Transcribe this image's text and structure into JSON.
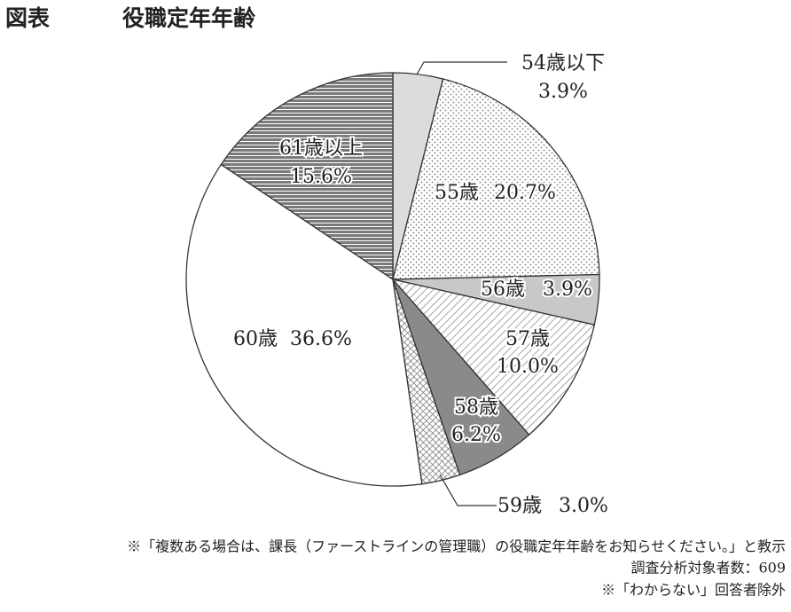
{
  "chart_data": {
    "type": "pie",
    "label": "図表",
    "title": "役職定年年齢",
    "categories": [
      "54歳以下",
      "55歳",
      "56歳",
      "57歳",
      "58歳",
      "59歳",
      "60歳",
      "61歳以上"
    ],
    "values": [
      3.9,
      20.7,
      3.9,
      10.0,
      6.2,
      3.0,
      36.6,
      15.6
    ],
    "value_labels": [
      "3.9%",
      "20.7%",
      "3.9%",
      "10.0%",
      "6.2%",
      "3.0%",
      "36.6%",
      "15.6%"
    ],
    "notes": [
      "※「複数ある場合は、課長（ファーストラインの管理職）の役職定年年齢をお知らせください。」と教示",
      "調査分析対象者数：609",
      "※「わからない」回答者除外"
    ]
  }
}
